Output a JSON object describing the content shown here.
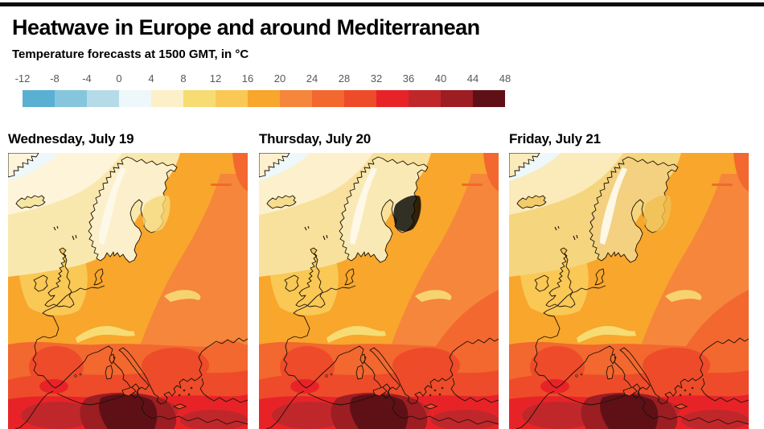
{
  "header": {
    "title": "Heatwave in Europe and around Mediterranean",
    "subtitle": "Temperature forecasts at 1500 GMT, in °C"
  },
  "scale": {
    "unit": "°C",
    "tick_labels": [
      "-12",
      "-8",
      "-4",
      "0",
      "4",
      "8",
      "12",
      "16",
      "20",
      "24",
      "28",
      "32",
      "36",
      "40",
      "44",
      "48"
    ],
    "segment_colors": [
      "#5ab0d2",
      "#85c6dc",
      "#b5dbe9",
      "#eef7f9",
      "#fbf0c8",
      "#f7dc74",
      "#f9c855",
      "#f8a62c",
      "#f5863c",
      "#f2682f",
      "#ee4b2a",
      "#e82328",
      "#c0272b",
      "#9c1d22",
      "#5f1016"
    ]
  },
  "panels": [
    {
      "label": "Wednesday, July 19"
    },
    {
      "label": "Thursday, July 20"
    },
    {
      "label": "Friday, July 21"
    }
  ]
}
